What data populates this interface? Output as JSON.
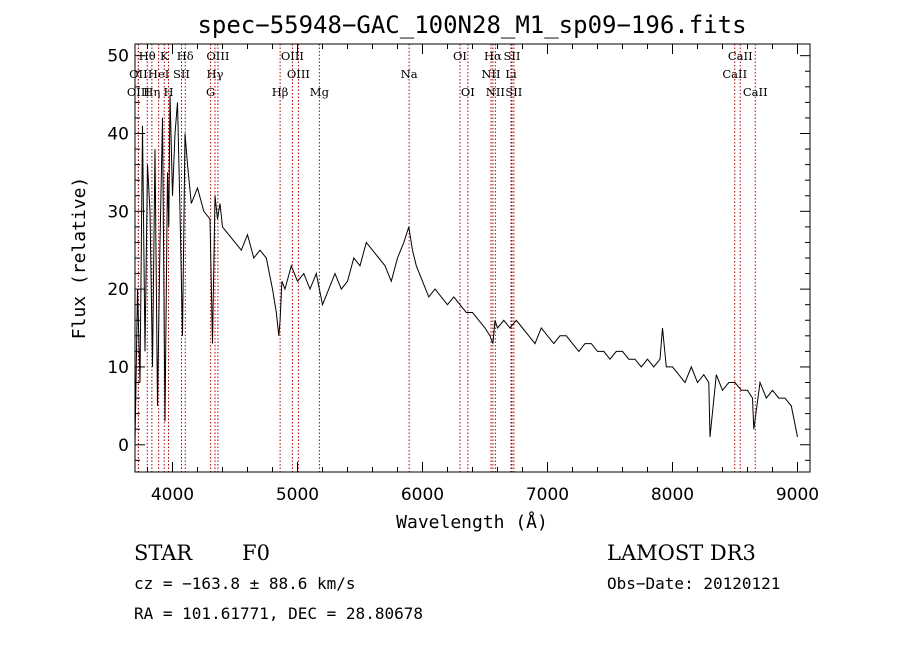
{
  "chart_data": {
    "type": "line",
    "title": "spec−55948−GAC_100N28_M1_sp09−196.fits",
    "xlabel": "Wavelength (Å)",
    "ylabel": "Flux (relative)",
    "xlim": [
      3700,
      9100
    ],
    "ylim": [
      -3.5,
      51.5
    ],
    "xticks": [
      4000,
      5000,
      6000,
      7000,
      8000,
      9000
    ],
    "yticks": [
      0,
      10,
      20,
      30,
      40,
      50
    ],
    "grid": false,
    "series": [
      {
        "name": "flux",
        "x": [
          3700,
          3720,
          3740,
          3760,
          3780,
          3800,
          3820,
          3840,
          3860,
          3880,
          3900,
          3920,
          3940,
          3960,
          3970,
          3980,
          4000,
          4020,
          4040,
          4060,
          4080,
          4100,
          4120,
          4150,
          4200,
          4250,
          4300,
          4320,
          4340,
          4360,
          4380,
          4400,
          4450,
          4500,
          4550,
          4600,
          4650,
          4700,
          4750,
          4800,
          4830,
          4850,
          4861,
          4875,
          4900,
          4950,
          5000,
          5050,
          5100,
          5150,
          5200,
          5250,
          5300,
          5350,
          5400,
          5450,
          5500,
          5550,
          5600,
          5650,
          5700,
          5750,
          5800,
          5850,
          5890,
          5900,
          5920,
          5950,
          6000,
          6050,
          6100,
          6150,
          6200,
          6250,
          6300,
          6350,
          6400,
          6450,
          6500,
          6540,
          6563,
          6580,
          6600,
          6650,
          6700,
          6750,
          6800,
          6850,
          6900,
          6950,
          7000,
          7050,
          7100,
          7150,
          7200,
          7250,
          7300,
          7350,
          7400,
          7450,
          7500,
          7550,
          7600,
          7650,
          7700,
          7750,
          7800,
          7850,
          7900,
          7920,
          7950,
          8000,
          8050,
          8100,
          8150,
          8200,
          8250,
          8290,
          8300,
          8350,
          8400,
          8450,
          8500,
          8550,
          8600,
          8640,
          8650,
          8700,
          8750,
          8800,
          8850,
          8900,
          8950,
          9000
        ],
        "values": [
          0,
          20,
          8,
          41,
          12,
          36,
          30,
          10,
          38,
          5,
          26,
          42,
          3,
          35,
          28,
          45,
          32,
          40,
          44,
          30,
          14,
          40,
          36,
          31,
          33,
          30,
          29,
          13,
          32,
          29,
          31,
          28,
          27,
          26,
          25,
          27,
          24,
          25,
          24,
          20,
          17,
          14,
          16,
          21,
          20,
          23,
          21,
          22,
          20,
          22,
          18,
          20,
          22,
          20,
          21,
          24,
          23,
          26,
          25,
          24,
          23,
          21,
          24,
          26,
          28,
          27,
          25,
          23,
          21,
          19,
          20,
          19,
          18,
          19,
          18,
          17,
          17,
          16,
          15,
          14,
          13,
          16,
          15,
          16,
          15,
          16,
          15,
          14,
          13,
          15,
          14,
          13,
          14,
          14,
          13,
          12,
          13,
          13,
          12,
          12,
          11,
          12,
          12,
          11,
          11,
          10,
          11,
          10,
          11,
          15,
          10,
          10,
          9,
          8,
          10,
          8,
          9,
          8,
          1,
          9,
          7,
          8,
          8,
          7,
          7,
          6,
          2,
          8,
          6,
          7,
          6,
          6,
          5,
          1
        ]
      }
    ],
    "lines": [
      {
        "name": "Hθ",
        "wl": 3798,
        "row": 0
      },
      {
        "name": "K",
        "wl": 3934,
        "row": 0
      },
      {
        "name": "Hδ",
        "wl": 4102,
        "row": 0
      },
      {
        "name": "OIII",
        "wl": 4363,
        "row": 0
      },
      {
        "name": "OIII",
        "wl": 4959,
        "row": 0
      },
      {
        "name": "OI",
        "wl": 6300,
        "row": 0
      },
      {
        "name": "Hα",
        "wl": 6563,
        "row": 0
      },
      {
        "name": "SII",
        "wl": 6716,
        "row": 0
      },
      {
        "name": "CaII",
        "wl": 8542,
        "row": 0
      },
      {
        "name": "OII",
        "wl": 3727,
        "row": 1
      },
      {
        "name": "HeI",
        "wl": 3889,
        "row": 1
      },
      {
        "name": "SII",
        "wl": 4072,
        "row": 1
      },
      {
        "name": "Hγ",
        "wl": 4340,
        "row": 1
      },
      {
        "name": "OIII",
        "wl": 5007,
        "row": 1
      },
      {
        "name": "Na",
        "wl": 5893,
        "row": 1
      },
      {
        "name": "NII",
        "wl": 6548,
        "row": 1
      },
      {
        "name": "Li",
        "wl": 6708,
        "row": 1
      },
      {
        "name": "CaII",
        "wl": 8498,
        "row": 1
      },
      {
        "name": "OIII",
        "wl": 3727,
        "row": 2
      },
      {
        "name": "Hη",
        "wl": 3835,
        "row": 2
      },
      {
        "name": "H",
        "wl": 3968,
        "row": 2
      },
      {
        "name": "G",
        "wl": 4305,
        "row": 2
      },
      {
        "name": "Hβ",
        "wl": 4861,
        "row": 2
      },
      {
        "name": "Mg",
        "wl": 5175,
        "row": 2
      },
      {
        "name": "OI",
        "wl": 6363,
        "row": 2
      },
      {
        "name": "NII",
        "wl": 6583,
        "row": 2
      },
      {
        "name": "SII",
        "wl": 6731,
        "row": 2
      },
      {
        "name": "CaII",
        "wl": 8662,
        "row": 2
      }
    ]
  },
  "info": {
    "object_class": "STAR",
    "subclass": "F0",
    "survey": "LAMOST DR3",
    "cz": "cz = −163.8 ± 88.6 km/s",
    "obs_date": "Obs−Date: 20120121",
    "radec": "RA = 101.61771, DEC =  28.80678"
  },
  "colors": {
    "line_marker": "#b00000",
    "spectrum": "#000000",
    "axes": "#000000"
  }
}
